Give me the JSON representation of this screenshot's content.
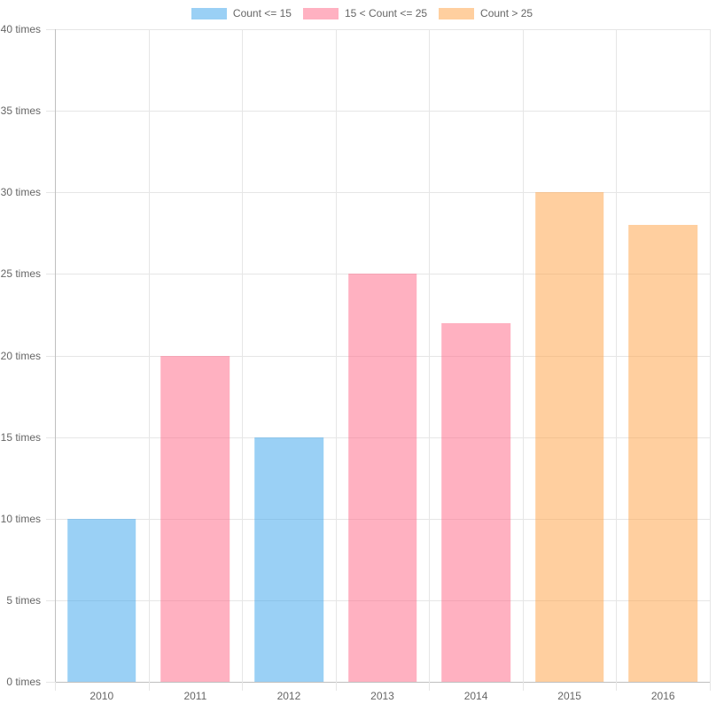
{
  "chart_data": {
    "type": "bar",
    "title": "",
    "categories": [
      "2010",
      "2011",
      "2012",
      "2013",
      "2014",
      "2015",
      "2016"
    ],
    "series": [
      {
        "name": "Count <= 15",
        "color": "rgba(54, 162, 235, 0.5)",
        "solid_color": "#9AD0F5",
        "values": [
          10,
          null,
          15,
          null,
          null,
          null,
          null
        ]
      },
      {
        "name": "15 < Count <= 25",
        "color": "rgba(255, 99, 132, 0.5)",
        "solid_color": "#FFB1C1",
        "values": [
          null,
          20,
          null,
          25,
          22,
          null,
          null
        ]
      },
      {
        "name": "Count > 25",
        "color": "rgba(255, 159, 64, 0.5)",
        "solid_color": "#FFCFA0",
        "values": [
          null,
          null,
          null,
          null,
          null,
          30,
          28
        ]
      }
    ],
    "bar_values_by_category": [
      10,
      20,
      15,
      25,
      22,
      30,
      28
    ],
    "xlabel": "",
    "ylabel": "",
    "ylim": [
      0,
      40
    ],
    "ytick_step": 5,
    "ytick_suffix": " times",
    "ytick_labels": [
      "0 times",
      "5 times",
      "10 times",
      "15 times",
      "20 times",
      "25 times",
      "30 times",
      "35 times",
      "40 times"
    ],
    "legend_position": "top",
    "grid": true,
    "colors": {
      "grid_line": "#e6e6e6",
      "axis_line": "#bfbfbf",
      "tick_text": "#666666",
      "background": "#ffffff"
    },
    "bar_width_fraction": 0.735
  }
}
